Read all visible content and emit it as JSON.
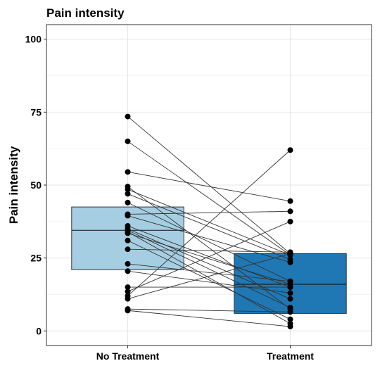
{
  "chart_data": {
    "type": "box",
    "title": "Pain intensity",
    "ylabel": "Pain intensity",
    "xlabel": "",
    "categories": [
      "No Treatment",
      "Treatment"
    ],
    "ylim": [
      -5,
      105
    ],
    "yticks": [
      0,
      25,
      50,
      75,
      100
    ],
    "grid": true,
    "boxes": [
      {
        "category": "No Treatment",
        "q1": 21,
        "median": 34.5,
        "q3": 42.5,
        "color": "#a6cee3"
      },
      {
        "category": "Treatment",
        "q1": 6,
        "median": 16,
        "q3": 26.5,
        "color": "#1f78b4"
      }
    ],
    "pairs": [
      [
        73.5,
        26.5
      ],
      [
        65,
        26
      ],
      [
        54.5,
        44.5
      ],
      [
        49.5,
        7.5
      ],
      [
        48.5,
        26
      ],
      [
        47,
        24.5
      ],
      [
        44,
        17
      ],
      [
        40,
        41
      ],
      [
        39.5,
        23.5
      ],
      [
        36,
        15
      ],
      [
        35,
        11
      ],
      [
        34.5,
        8
      ],
      [
        34,
        2.5
      ],
      [
        33.5,
        16
      ],
      [
        31,
        4
      ],
      [
        28,
        27
      ],
      [
        23,
        17
      ],
      [
        20.5,
        13
      ],
      [
        15,
        15
      ],
      [
        13.5,
        37.5
      ],
      [
        12,
        62
      ],
      [
        11,
        26.5
      ],
      [
        7.5,
        6.5
      ],
      [
        7,
        1.5
      ]
    ]
  }
}
